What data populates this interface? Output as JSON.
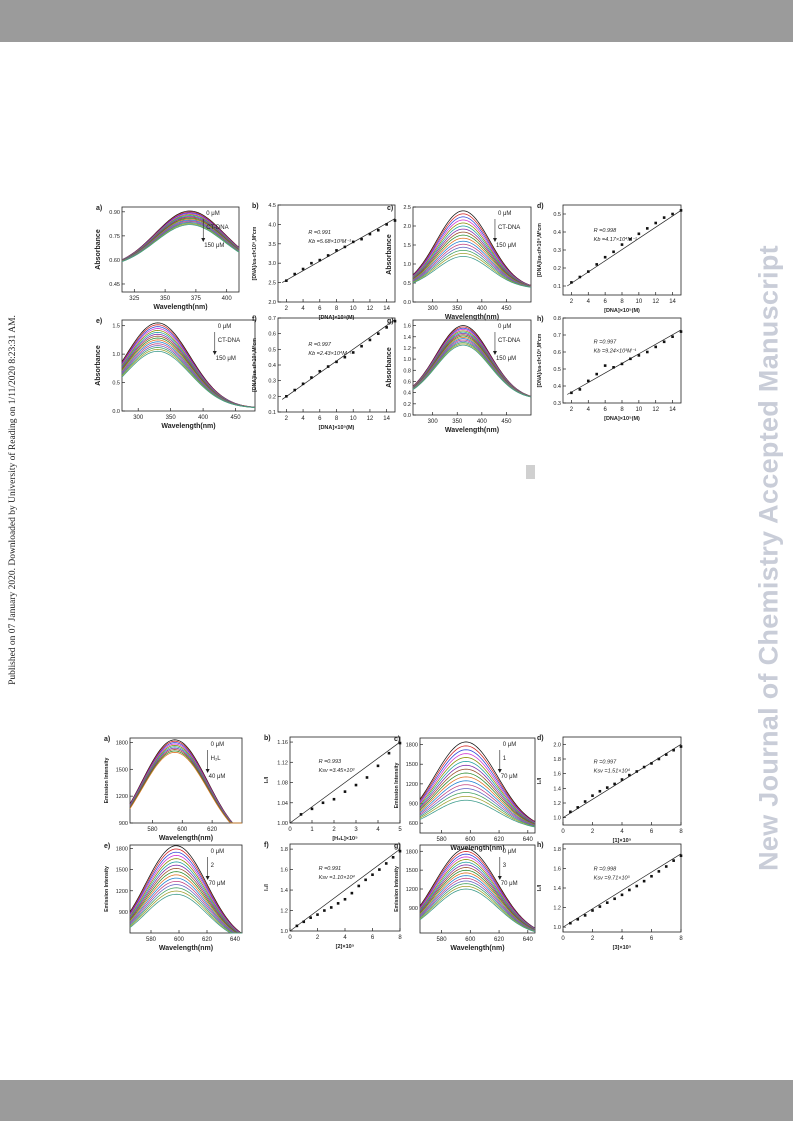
{
  "side_text": "Published on 07 January 2020. Downloaded by University of Reading on 1/11/2020 8:23:31 AM.",
  "watermark": "New Journal of Chemistry Accepted Manuscript",
  "chart_data": [
    {
      "id": "a",
      "type": "line",
      "label": "a)",
      "xlabel": "Wavelength(nm)",
      "ylabel": "Absorbance",
      "xlim": [
        315,
        410
      ],
      "ylim": [
        0.4,
        0.93
      ],
      "xticks": [
        325,
        350,
        375,
        400
      ],
      "yticks": [
        "0.45",
        "0.60",
        "0.75",
        "0.90"
      ],
      "peak_x": 370,
      "width": 28,
      "base": 0.55,
      "peak_top": 0.905,
      "peak_bottom": 0.82,
      "n_series": 16,
      "annotations": [
        "0 μM",
        "CT-DNA",
        "150 μM"
      ]
    },
    {
      "id": "b",
      "type": "scatter",
      "label": "b)",
      "xlabel": "[DNA]×10⁵(M)",
      "ylabel": "[DNA]/εa-εf×10⁹,M²cm",
      "xlim": [
        1,
        15
      ],
      "ylim": [
        2.0,
        4.5
      ],
      "xticks": [
        "2",
        "4",
        "6",
        "8",
        "10",
        "12",
        "14"
      ],
      "yticks": [
        "2.0",
        "2.5",
        "3.0",
        "3.5",
        "4.0",
        "4.5"
      ],
      "x": [
        2,
        3,
        4,
        5,
        6,
        7,
        8,
        9,
        10,
        11,
        12,
        13,
        14,
        15
      ],
      "y": [
        2.55,
        2.72,
        2.85,
        3.0,
        3.08,
        3.2,
        3.33,
        3.42,
        3.55,
        3.62,
        3.75,
        3.85,
        4.0,
        4.1
      ],
      "fit": [
        [
          1.5,
          2.5
        ],
        [
          15,
          4.15
        ]
      ],
      "annotations": [
        "R =0.991",
        "Kb =5.68×10³M⁻¹"
      ]
    },
    {
      "id": "c",
      "type": "line",
      "label": "c)",
      "xlabel": "Wavelength(nm)",
      "ylabel": "Absorbance",
      "xlim": [
        260,
        500
      ],
      "ylim": [
        0,
        2.5
      ],
      "xticks": [
        300,
        350,
        400,
        450
      ],
      "yticks": [
        "0.0",
        "0.5",
        "1.0",
        "1.5",
        "2.0",
        "2.5"
      ],
      "peak_x": 362,
      "width": 55,
      "base": 0.35,
      "peak_top": 2.4,
      "peak_bottom": 1.2,
      "n_series": 16,
      "annotations": [
        "0 μM",
        "CT-DNA",
        "150 μM"
      ]
    },
    {
      "id": "d",
      "type": "scatter",
      "label": "d)",
      "xlabel": "[DNA]×10⁵(M)",
      "ylabel": "[DNA]/εa-εf×10⁸,M²cm",
      "xlim": [
        1,
        15
      ],
      "ylim": [
        0.05,
        0.55
      ],
      "xticks": [
        "2",
        "4",
        "6",
        "8",
        "10",
        "12",
        "14"
      ],
      "yticks": [
        "0.1",
        "0.2",
        "0.3",
        "0.4",
        "0.5"
      ],
      "x": [
        2,
        3,
        4,
        5,
        6,
        7,
        8,
        9,
        10,
        11,
        12,
        13,
        14,
        15
      ],
      "y": [
        0.12,
        0.15,
        0.18,
        0.22,
        0.26,
        0.29,
        0.33,
        0.36,
        0.39,
        0.42,
        0.45,
        0.48,
        0.5,
        0.52
      ],
      "fit": [
        [
          1.5,
          0.1
        ],
        [
          15,
          0.52
        ]
      ],
      "annotations": [
        "R =0.998",
        "Kb =4.17×10⁴M⁻¹"
      ]
    },
    {
      "id": "e",
      "type": "line",
      "label": "e)",
      "xlabel": "Wavelength(nm)",
      "ylabel": "Absorbance",
      "xlim": [
        275,
        480
      ],
      "ylim": [
        0,
        1.6
      ],
      "xticks": [
        300,
        350,
        400,
        450
      ],
      "yticks": [
        "0.0",
        "0.5",
        "1.0",
        "1.5"
      ],
      "peak_x": 330,
      "width": 50,
      "base": 0.05,
      "peak_top": 1.55,
      "peak_bottom": 1.05,
      "n_series": 16,
      "annotations": [
        "0 μM",
        "CT-DNA",
        "150 μM"
      ]
    },
    {
      "id": "f",
      "type": "scatter",
      "label": "f)",
      "xlabel": "[DNA]×10⁵(M)",
      "ylabel": "[DNA]/εa-εf×10⁹,M²cm",
      "xlim": [
        1,
        15
      ],
      "ylim": [
        0.1,
        0.7
      ],
      "xticks": [
        "2",
        "4",
        "6",
        "8",
        "10",
        "12",
        "14"
      ],
      "yticks": [
        "0.1",
        "0.2",
        "0.3",
        "0.4",
        "0.5",
        "0.6",
        "0.7"
      ],
      "x": [
        2,
        3,
        4,
        5,
        6,
        7,
        8,
        9,
        10,
        11,
        12,
        13,
        14,
        15
      ],
      "y": [
        0.2,
        0.24,
        0.28,
        0.32,
        0.36,
        0.39,
        0.42,
        0.45,
        0.48,
        0.52,
        0.56,
        0.6,
        0.64,
        0.68
      ],
      "fit": [
        [
          1.5,
          0.18
        ],
        [
          15,
          0.69
        ]
      ],
      "annotations": [
        "R =0.997",
        "Kb =2.43×10⁴M⁻¹"
      ]
    },
    {
      "id": "g",
      "type": "line",
      "label": "g)",
      "xlabel": "Wavelength(nm)",
      "ylabel": "Absorbance",
      "xlim": [
        260,
        500
      ],
      "ylim": [
        0,
        1.7
      ],
      "xticks": [
        300,
        350,
        400,
        450
      ],
      "yticks": [
        "0.0",
        "0.2",
        "0.4",
        "0.6",
        "0.8",
        "1.0",
        "1.2",
        "1.4",
        "1.6"
      ],
      "peak_x": 362,
      "width": 55,
      "base": 0.28,
      "peak_top": 1.6,
      "peak_bottom": 1.25,
      "n_series": 16,
      "annotations": [
        "0 μM",
        "CT-DNA",
        "150 μM"
      ]
    },
    {
      "id": "h",
      "type": "scatter",
      "label": "h)",
      "xlabel": "[DNA]×10⁵(M)",
      "ylabel": "[DNA]/εa-εf×10⁹,M²cm",
      "xlim": [
        1,
        15
      ],
      "ylim": [
        0.3,
        0.8
      ],
      "xticks": [
        "2",
        "4",
        "6",
        "8",
        "10",
        "12",
        "14"
      ],
      "yticks": [
        "0.3",
        "0.4",
        "0.5",
        "0.6",
        "0.7",
        "0.8"
      ],
      "x": [
        2,
        3,
        4,
        5,
        6,
        7,
        8,
        9,
        10,
        11,
        12,
        13,
        14,
        15
      ],
      "y": [
        0.36,
        0.38,
        0.43,
        0.47,
        0.52,
        0.51,
        0.53,
        0.56,
        0.58,
        0.6,
        0.63,
        0.66,
        0.69,
        0.72
      ],
      "fit": [
        [
          1.5,
          0.35
        ],
        [
          15,
          0.73
        ]
      ],
      "annotations": [
        "R =0.997",
        "Kb =9.24×10³M⁻¹"
      ]
    },
    {
      "id": "a2",
      "type": "line",
      "label": "a)",
      "xlabel": "Wavelength(nm)",
      "ylabel": "Emission Intensity",
      "xlim": [
        565,
        640
      ],
      "ylim": [
        900,
        1850
      ],
      "xticks": [
        580,
        600,
        620
      ],
      "yticks": [
        "900",
        "1200",
        "1500",
        "1800"
      ],
      "peak_x": 595,
      "width": 22,
      "base": 650,
      "peak_top": 1830,
      "peak_bottom": 1690,
      "n_series": 10,
      "annotations": [
        "0 μM",
        "H₂L",
        "40 μM"
      ]
    },
    {
      "id": "b2",
      "type": "scatter",
      "label": "b)",
      "xlabel": "[H₂L]×10⁵",
      "ylabel": "I₀/I",
      "xlim": [
        0,
        5
      ],
      "ylim": [
        1.0,
        1.17
      ],
      "xticks": [
        "0",
        "1",
        "2",
        "3",
        "4",
        "5"
      ],
      "yticks": [
        "1.00",
        "1.04",
        "1.08",
        "1.12",
        "1.16"
      ],
      "x": [
        0.5,
        1,
        1.5,
        2,
        2.5,
        3,
        3.5,
        4,
        4.5,
        5
      ],
      "y": [
        1.017,
        1.028,
        1.04,
        1.047,
        1.062,
        1.075,
        1.09,
        1.113,
        1.138,
        1.158
      ],
      "fit": [
        [
          0,
          1.0
        ],
        [
          5,
          1.16
        ]
      ],
      "annotations": [
        "R =0.993",
        "Ksv =3.45×10³"
      ]
    },
    {
      "id": "c2",
      "type": "line",
      "label": "c)",
      "xlabel": "Wavelength(nm)",
      "ylabel": "Emission Intensity",
      "xlim": [
        565,
        645
      ],
      "ylim": [
        450,
        1900
      ],
      "xticks": [
        580,
        600,
        620,
        640
      ],
      "yticks": [
        "600",
        "900",
        "1200",
        "1500",
        "1800"
      ],
      "peak_x": 597,
      "width": 22,
      "base": 500,
      "peak_top": 1840,
      "peak_bottom": 950,
      "n_series": 16,
      "annotations": [
        "0 μM",
        "1",
        "70 μM"
      ]
    },
    {
      "id": "d2",
      "type": "scatter",
      "label": "d)",
      "xlabel": "[1]×10⁵",
      "ylabel": "I₀/I",
      "xlim": [
        0,
        8
      ],
      "ylim": [
        0.9,
        2.1
      ],
      "xticks": [
        "0",
        "2",
        "4",
        "6",
        "8"
      ],
      "yticks": [
        "1.0",
        "1.2",
        "1.4",
        "1.6",
        "1.8",
        "2.0"
      ],
      "x": [
        0.5,
        1,
        1.5,
        2,
        2.5,
        3,
        3.5,
        4,
        4.5,
        5,
        5.5,
        6,
        6.5,
        7,
        7.5,
        8
      ],
      "y": [
        1.08,
        1.14,
        1.22,
        1.3,
        1.36,
        1.41,
        1.46,
        1.52,
        1.58,
        1.63,
        1.69,
        1.74,
        1.8,
        1.86,
        1.92,
        1.97
      ],
      "fit": [
        [
          0,
          1.0
        ],
        [
          8,
          2.0
        ]
      ],
      "annotations": [
        "R =0.997",
        "Ksv =1.51×10⁴"
      ]
    },
    {
      "id": "e2",
      "type": "line",
      "label": "e)",
      "xlabel": "Wavelength(nm)",
      "ylabel": "Emission Intensity",
      "xlim": [
        565,
        645
      ],
      "ylim": [
        600,
        1850
      ],
      "xticks": [
        580,
        600,
        620,
        640
      ],
      "yticks": [
        "900",
        "1200",
        "1500",
        "1800"
      ],
      "peak_x": 598,
      "width": 22,
      "base": 450,
      "peak_top": 1840,
      "peak_bottom": 1150,
      "n_series": 16,
      "annotations": [
        "0 μM",
        "2",
        "70 μM"
      ]
    },
    {
      "id": "f2",
      "type": "scatter",
      "label": "f)",
      "xlabel": "[2]×10⁵",
      "ylabel": "I₀/I",
      "xlim": [
        0,
        8
      ],
      "ylim": [
        1.0,
        1.85
      ],
      "xticks": [
        "0",
        "2",
        "4",
        "6",
        "8"
      ],
      "yticks": [
        "1.0",
        "1.2",
        "1.4",
        "1.6",
        "1.8"
      ],
      "x": [
        0.5,
        1,
        1.5,
        2,
        2.5,
        3,
        3.5,
        4,
        4.5,
        5,
        5.5,
        6,
        6.5,
        7,
        7.5,
        8
      ],
      "y": [
        1.05,
        1.09,
        1.13,
        1.16,
        1.2,
        1.23,
        1.27,
        1.31,
        1.37,
        1.44,
        1.5,
        1.55,
        1.6,
        1.66,
        1.72,
        1.78
      ],
      "fit": [
        [
          0,
          1.0
        ],
        [
          8,
          1.8
        ]
      ],
      "annotations": [
        "R =0.991",
        "Ksv =1.10×10⁴"
      ]
    },
    {
      "id": "g2",
      "type": "line",
      "label": "g)",
      "xlabel": "Wavelength(nm)",
      "ylabel": "Emission Intensity",
      "xlim": [
        565,
        645
      ],
      "ylim": [
        500,
        1900
      ],
      "xticks": [
        580,
        600,
        620,
        640
      ],
      "yticks": [
        "900",
        "1200",
        "1500",
        "1800"
      ],
      "peak_x": 597,
      "width": 22,
      "base": 450,
      "peak_top": 1840,
      "peak_bottom": 1200,
      "n_series": 16,
      "annotations": [
        "0 μM",
        "3",
        "70 μM"
      ]
    },
    {
      "id": "h2",
      "type": "scatter",
      "label": "h)",
      "xlabel": "[3]×10⁵",
      "ylabel": "I₀/I",
      "xlim": [
        0,
        8
      ],
      "ylim": [
        0.95,
        1.85
      ],
      "xticks": [
        "0",
        "2",
        "4",
        "6",
        "8"
      ],
      "yticks": [
        "1.0",
        "1.2",
        "1.4",
        "1.6",
        "1.8"
      ],
      "x": [
        0.5,
        1,
        1.5,
        2,
        2.5,
        3,
        3.5,
        4,
        4.5,
        5,
        5.5,
        6,
        6.5,
        7,
        7.5,
        8
      ],
      "y": [
        1.04,
        1.08,
        1.12,
        1.17,
        1.21,
        1.25,
        1.29,
        1.33,
        1.38,
        1.42,
        1.47,
        1.52,
        1.57,
        1.62,
        1.68,
        1.73
      ],
      "fit": [
        [
          0,
          1.0
        ],
        [
          8,
          1.75
        ]
      ],
      "annotations": [
        "R =0.998",
        "Ksv =9.71×10³"
      ]
    }
  ]
}
